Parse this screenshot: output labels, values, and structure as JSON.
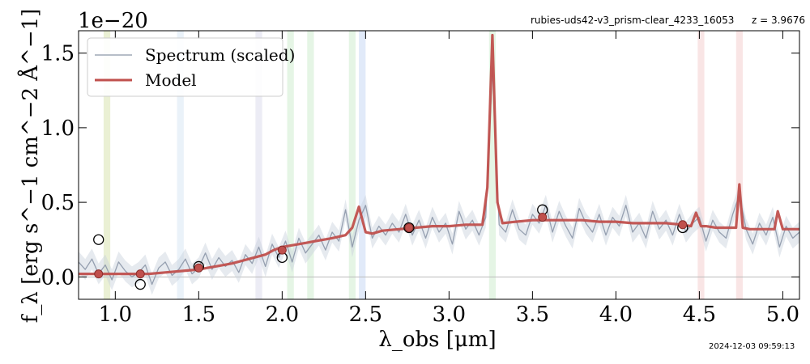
{
  "chart_data": {
    "type": "line",
    "title": "",
    "header_left": "rubies-uds42-v3_prism-clear_4233_16053",
    "header_right": "z = 3.9676",
    "offset_text": "1e−20",
    "timestamp": "2024-12-03 09:59:13",
    "xlabel": "λ_obs [μm]",
    "ylabel": "f_λ [erg s^−1 cm^−2 Å^−1]",
    "xlim": [
      0.78,
      5.1
    ],
    "ylim": [
      -0.15,
      1.65
    ],
    "x_ticks": [
      1.0,
      1.5,
      2.0,
      2.5,
      3.0,
      3.5,
      4.0,
      4.5,
      5.0
    ],
    "x_tick_labels": [
      "1.0",
      "1.5",
      "2.0",
      "2.5",
      "3.0",
      "3.5",
      "4.0",
      "4.5",
      "5.0"
    ],
    "y_ticks": [
      0.0,
      0.5,
      1.0,
      1.5
    ],
    "y_tick_labels": [
      "0.0",
      "0.5",
      "1.0",
      "1.5"
    ],
    "legend_position": "top-left",
    "grid": false,
    "series": [
      {
        "name": "Spectrum (scaled)",
        "color": "#8c97a8",
        "x": [
          0.78,
          0.82,
          0.86,
          0.9,
          0.94,
          0.98,
          1.02,
          1.06,
          1.1,
          1.14,
          1.18,
          1.22,
          1.26,
          1.3,
          1.34,
          1.38,
          1.42,
          1.46,
          1.5,
          1.54,
          1.58,
          1.62,
          1.66,
          1.7,
          1.74,
          1.78,
          1.82,
          1.86,
          1.9,
          1.94,
          1.98,
          2.02,
          2.06,
          2.1,
          2.14,
          2.18,
          2.22,
          2.26,
          2.3,
          2.34,
          2.38,
          2.42,
          2.46,
          2.5,
          2.54,
          2.58,
          2.62,
          2.66,
          2.7,
          2.74,
          2.78,
          2.82,
          2.86,
          2.9,
          2.94,
          2.98,
          3.02,
          3.06,
          3.1,
          3.14,
          3.18,
          3.22,
          3.26,
          3.3,
          3.34,
          3.38,
          3.42,
          3.46,
          3.5,
          3.54,
          3.58,
          3.62,
          3.66,
          3.7,
          3.74,
          3.78,
          3.82,
          3.86,
          3.9,
          3.94,
          3.98,
          4.02,
          4.06,
          4.1,
          4.14,
          4.18,
          4.22,
          4.26,
          4.3,
          4.34,
          4.38,
          4.42,
          4.46,
          4.5,
          4.54,
          4.58,
          4.62,
          4.66,
          4.7,
          4.74,
          4.78,
          4.82,
          4.86,
          4.9,
          4.94,
          4.98,
          5.02,
          5.06,
          5.1
        ],
        "y": [
          0.1,
          0.05,
          0.12,
          0.02,
          0.08,
          -0.02,
          0.1,
          0.04,
          0.0,
          0.03,
          0.08,
          -0.05,
          0.06,
          0.1,
          0.01,
          0.05,
          0.12,
          0.02,
          0.06,
          0.16,
          0.05,
          0.13,
          0.07,
          0.11,
          0.03,
          0.15,
          0.09,
          0.2,
          0.07,
          0.22,
          0.13,
          0.24,
          0.1,
          0.26,
          0.16,
          0.22,
          0.28,
          0.18,
          0.3,
          0.24,
          0.45,
          0.2,
          0.38,
          0.48,
          0.26,
          0.34,
          0.28,
          0.36,
          0.3,
          0.42,
          0.28,
          0.38,
          0.26,
          0.4,
          0.3,
          0.36,
          0.22,
          0.44,
          0.32,
          0.38,
          0.28,
          0.4,
          1.4,
          0.35,
          0.3,
          0.45,
          0.32,
          0.28,
          0.42,
          0.36,
          0.48,
          0.3,
          0.44,
          0.34,
          0.26,
          0.46,
          0.36,
          0.3,
          0.42,
          0.28,
          0.4,
          0.34,
          0.48,
          0.3,
          0.36,
          0.26,
          0.44,
          0.32,
          0.38,
          0.28,
          0.42,
          0.3,
          0.36,
          0.4,
          0.24,
          0.38,
          0.3,
          0.26,
          0.42,
          0.55,
          0.32,
          0.22,
          0.36,
          0.28,
          0.4,
          0.2,
          0.34,
          0.26,
          0.3
        ]
      },
      {
        "name": "Model",
        "color": "#c0504d",
        "x": [
          0.78,
          0.9,
          1.0,
          1.1,
          1.2,
          1.3,
          1.4,
          1.5,
          1.6,
          1.7,
          1.8,
          1.9,
          1.95,
          2.0,
          2.05,
          2.1,
          2.2,
          2.3,
          2.38,
          2.42,
          2.46,
          2.5,
          2.54,
          2.6,
          2.7,
          2.8,
          2.9,
          3.0,
          3.1,
          3.2,
          3.23,
          3.26,
          3.29,
          3.32,
          3.4,
          3.5,
          3.6,
          3.7,
          3.8,
          3.9,
          4.0,
          4.1,
          4.2,
          4.3,
          4.4,
          4.45,
          4.48,
          4.51,
          4.54,
          4.6,
          4.7,
          4.72,
          4.74,
          4.76,
          4.8,
          4.9,
          4.95,
          4.97,
          5.0,
          5.1
        ],
        "y": [
          0.02,
          0.02,
          0.02,
          0.02,
          0.02,
          0.03,
          0.04,
          0.05,
          0.07,
          0.09,
          0.12,
          0.15,
          0.18,
          0.2,
          0.21,
          0.22,
          0.24,
          0.26,
          0.28,
          0.33,
          0.47,
          0.3,
          0.29,
          0.31,
          0.32,
          0.33,
          0.34,
          0.34,
          0.35,
          0.35,
          0.6,
          1.62,
          0.5,
          0.36,
          0.37,
          0.38,
          0.38,
          0.38,
          0.38,
          0.37,
          0.37,
          0.36,
          0.36,
          0.36,
          0.35,
          0.34,
          0.43,
          0.34,
          0.34,
          0.33,
          0.33,
          0.33,
          0.62,
          0.33,
          0.32,
          0.32,
          0.32,
          0.44,
          0.32,
          0.32
        ]
      }
    ],
    "photometry_points": [
      {
        "x": 0.9,
        "y": 0.25
      },
      {
        "x": 1.15,
        "y": -0.05
      },
      {
        "x": 1.5,
        "y": 0.07
      },
      {
        "x": 2.0,
        "y": 0.13
      },
      {
        "x": 2.76,
        "y": 0.33
      },
      {
        "x": 3.56,
        "y": 0.45
      },
      {
        "x": 4.4,
        "y": 0.33
      }
    ],
    "model_photometry_points": [
      {
        "x": 0.9,
        "y": 0.02
      },
      {
        "x": 1.15,
        "y": 0.02
      },
      {
        "x": 1.5,
        "y": 0.06
      },
      {
        "x": 2.0,
        "y": 0.18
      },
      {
        "x": 2.76,
        "y": 0.33
      },
      {
        "x": 3.56,
        "y": 0.4
      },
      {
        "x": 4.4,
        "y": 0.35
      }
    ],
    "bands": [
      {
        "x0": 0.93,
        "x1": 0.97,
        "color": "#d8e4b0"
      },
      {
        "x0": 1.37,
        "x1": 1.41,
        "color": "#d8e8f4"
      },
      {
        "x0": 1.84,
        "x1": 1.88,
        "color": "#dcdcec"
      },
      {
        "x0": 2.03,
        "x1": 2.07,
        "color": "#d0ecd0"
      },
      {
        "x0": 2.15,
        "x1": 2.19,
        "color": "#d0ecd0"
      },
      {
        "x0": 2.4,
        "x1": 2.44,
        "color": "#d0ecd0"
      },
      {
        "x0": 2.46,
        "x1": 2.5,
        "color": "#c8d8f4"
      },
      {
        "x0": 3.24,
        "x1": 3.28,
        "color": "#d0ecd0"
      },
      {
        "x0": 4.49,
        "x1": 4.53,
        "color": "#f4d0d0"
      },
      {
        "x0": 4.72,
        "x1": 4.76,
        "color": "#f4d0d0"
      }
    ]
  }
}
